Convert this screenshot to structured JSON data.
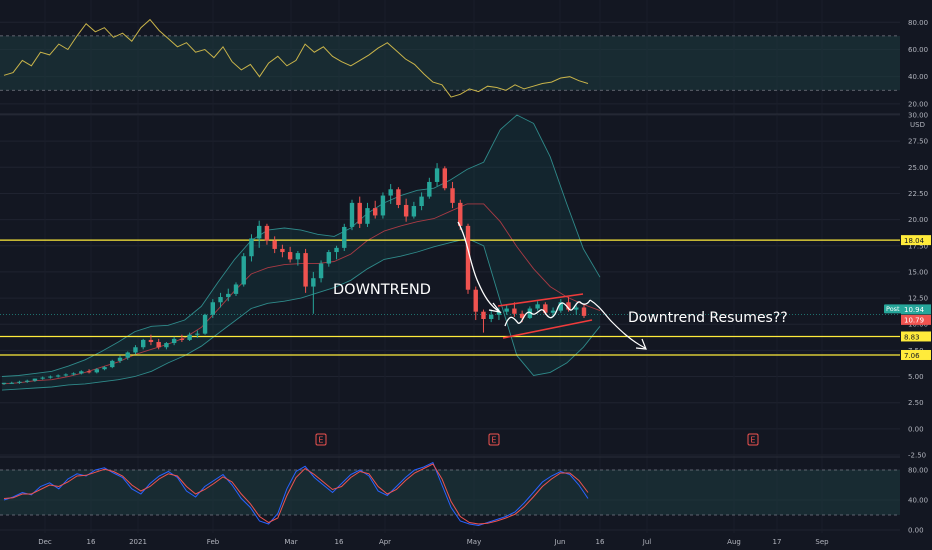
{
  "chart_data": [
    {
      "type": "line",
      "name": "RSI",
      "ylim": [
        14,
        92
      ],
      "y_ticks": [
        "80.00",
        "60.00",
        "40.00",
        "20.00"
      ],
      "band": [
        30,
        70
      ],
      "series": [
        {
          "color": "#c9b44a",
          "x": [
            0,
            2,
            4,
            6,
            8,
            10,
            12,
            14,
            16,
            18,
            20,
            22,
            24,
            26,
            28,
            30,
            32,
            34,
            36,
            38,
            40,
            42,
            44,
            46,
            48,
            50,
            52,
            54,
            56,
            58,
            60,
            62,
            64,
            66,
            68,
            70,
            72,
            74,
            76,
            78,
            80,
            82,
            84,
            86,
            88,
            90,
            92,
            94,
            96,
            98,
            100,
            102,
            104,
            106,
            108,
            110,
            112,
            114,
            116,
            118,
            120,
            122,
            124,
            126,
            128
          ],
          "values": [
            41,
            43,
            52,
            48,
            58,
            56,
            64,
            60,
            70,
            79,
            73,
            76,
            69,
            72,
            66,
            76,
            82,
            74,
            68,
            62,
            65,
            58,
            60,
            54,
            62,
            51,
            45,
            49,
            40,
            50,
            55,
            48,
            52,
            64,
            58,
            62,
            55,
            51,
            48,
            52,
            56,
            61,
            65,
            59,
            53,
            49,
            42,
            36,
            34,
            25,
            27,
            31,
            29,
            33,
            32,
            30,
            34,
            31,
            33,
            35,
            36,
            39,
            40,
            37,
            35
          ]
        }
      ]
    },
    {
      "type": "candlestick",
      "name": "Price",
      "ylim": [
        -2.5,
        30.0
      ],
      "y_unit": "USD",
      "y_ticks": [
        "30.00",
        "27.50",
        "25.00",
        "22.50",
        "20.00",
        "17.50",
        "15.00",
        "12.50",
        "10.00",
        "7.50",
        "5.00",
        "2.50",
        "0.00",
        "-2.50"
      ],
      "x_ticks": [
        "Dec",
        "16",
        "2021",
        "Feb",
        "Mar",
        "16",
        "Apr",
        "May",
        "Jun",
        "16",
        "Jul",
        "Aug",
        "17",
        "Sep"
      ],
      "candles": [
        [
          4.3,
          4.4,
          4.2,
          4.4
        ],
        [
          4.4,
          4.5,
          4.3,
          4.4
        ],
        [
          4.4,
          4.6,
          4.3,
          4.5
        ],
        [
          4.5,
          4.7,
          4.4,
          4.6
        ],
        [
          4.6,
          4.8,
          4.5,
          4.8
        ],
        [
          4.8,
          5.0,
          4.7,
          4.9
        ],
        [
          4.9,
          5.1,
          4.8,
          5.0
        ],
        [
          5.0,
          5.2,
          4.9,
          5.1
        ],
        [
          5.1,
          5.3,
          5.0,
          5.2
        ],
        [
          5.2,
          5.4,
          5.1,
          5.3
        ],
        [
          5.3,
          5.6,
          5.2,
          5.5
        ],
        [
          5.5,
          5.7,
          5.3,
          5.4
        ],
        [
          5.4,
          5.8,
          5.3,
          5.7
        ],
        [
          5.7,
          6.0,
          5.6,
          5.9
        ],
        [
          5.9,
          6.6,
          5.8,
          6.5
        ],
        [
          6.5,
          7.0,
          6.3,
          6.8
        ],
        [
          6.8,
          7.4,
          6.6,
          7.3
        ],
        [
          7.3,
          8.0,
          7.1,
          7.8
        ],
        [
          7.8,
          8.6,
          7.6,
          8.5
        ],
        [
          8.5,
          9.0,
          8.0,
          8.3
        ],
        [
          8.3,
          8.6,
          7.6,
          7.8
        ],
        [
          7.8,
          8.3,
          7.6,
          8.2
        ],
        [
          8.2,
          8.8,
          8.0,
          8.6
        ],
        [
          8.6,
          9.0,
          8.3,
          8.5
        ],
        [
          8.5,
          9.2,
          8.4,
          9.0
        ],
        [
          9.0,
          9.4,
          8.7,
          9.1
        ],
        [
          9.1,
          11.0,
          9.0,
          10.9
        ],
        [
          10.9,
          12.4,
          10.6,
          12.1
        ],
        [
          12.1,
          13.0,
          11.6,
          12.6
        ],
        [
          12.6,
          13.4,
          12.2,
          12.9
        ],
        [
          12.9,
          14.0,
          12.7,
          13.8
        ],
        [
          13.8,
          16.8,
          13.6,
          16.5
        ],
        [
          16.5,
          18.6,
          16.0,
          18.2
        ],
        [
          18.2,
          19.9,
          17.3,
          19.4
        ],
        [
          19.4,
          19.6,
          17.6,
          18.0
        ],
        [
          18.0,
          18.4,
          16.8,
          17.2
        ],
        [
          17.2,
          17.6,
          16.4,
          16.9
        ],
        [
          16.9,
          17.4,
          15.9,
          16.2
        ],
        [
          16.2,
          17.0,
          15.6,
          16.8
        ],
        [
          16.8,
          17.2,
          13.0,
          13.6
        ],
        [
          13.6,
          15.0,
          11.0,
          14.4
        ],
        [
          14.4,
          16.1,
          14.0,
          15.8
        ],
        [
          15.8,
          17.1,
          15.5,
          16.9
        ],
        [
          16.9,
          17.5,
          16.2,
          17.3
        ],
        [
          17.3,
          19.6,
          17.0,
          19.3
        ],
        [
          19.3,
          21.9,
          19.0,
          21.6
        ],
        [
          21.6,
          22.2,
          19.2,
          19.6
        ],
        [
          19.6,
          21.6,
          19.3,
          21.1
        ],
        [
          21.1,
          21.8,
          20.1,
          20.4
        ],
        [
          20.4,
          22.6,
          20.1,
          22.3
        ],
        [
          22.3,
          23.4,
          21.5,
          22.9
        ],
        [
          22.9,
          23.1,
          21.1,
          21.4
        ],
        [
          21.4,
          22.0,
          19.8,
          20.3
        ],
        [
          20.3,
          21.7,
          20.1,
          21.3
        ],
        [
          21.3,
          22.6,
          20.9,
          22.2
        ],
        [
          22.2,
          24.0,
          22.0,
          23.6
        ],
        [
          23.6,
          25.4,
          23.2,
          24.9
        ],
        [
          24.9,
          25.1,
          22.8,
          23.0
        ],
        [
          23.0,
          23.6,
          21.1,
          21.6
        ],
        [
          21.6,
          21.9,
          19.0,
          19.4
        ],
        [
          19.4,
          19.6,
          12.9,
          13.3
        ],
        [
          13.3,
          13.6,
          10.4,
          11.2
        ],
        [
          11.2,
          11.4,
          9.2,
          10.5
        ],
        [
          10.5,
          11.4,
          10.2,
          10.9
        ],
        [
          10.9,
          11.6,
          10.4,
          11.2
        ],
        [
          11.2,
          11.8,
          10.9,
          11.5
        ],
        [
          11.5,
          12.1,
          10.7,
          11.0
        ],
        [
          11.0,
          11.3,
          10.2,
          10.6
        ],
        [
          10.6,
          11.7,
          10.5,
          11.5
        ],
        [
          11.5,
          12.2,
          11.3,
          11.9
        ],
        [
          11.9,
          12.1,
          10.9,
          11.1
        ],
        [
          11.1,
          11.6,
          10.8,
          11.3
        ],
        [
          11.3,
          12.4,
          11.1,
          12.1
        ],
        [
          12.1,
          12.6,
          11.2,
          11.4
        ],
        [
          11.4,
          11.8,
          10.9,
          11.6
        ],
        [
          11.6,
          11.9,
          10.6,
          10.8
        ]
      ],
      "bb_upper": [
        5.0,
        5.1,
        5.3,
        5.5,
        6.0,
        6.6,
        7.4,
        8.3,
        9.3,
        9.8,
        9.9,
        10.4,
        11.7,
        14.0,
        16.2,
        18.0,
        19.0,
        19.2,
        19.0,
        18.6,
        18.4,
        19.2,
        20.6,
        21.6,
        22.3,
        22.8,
        23.0,
        23.8,
        24.8,
        25.5,
        28.6,
        30.0,
        29.2,
        26.0,
        21.5,
        17.2,
        14.5
      ],
      "bb_lower": [
        3.7,
        3.8,
        3.9,
        4.0,
        4.2,
        4.3,
        4.5,
        4.7,
        5.0,
        5.5,
        6.3,
        7.0,
        7.9,
        9.1,
        10.3,
        11.5,
        12.0,
        12.2,
        12.5,
        13.0,
        13.5,
        14.2,
        15.3,
        16.2,
        16.5,
        16.9,
        17.4,
        17.8,
        18.2,
        17.5,
        12.2,
        7.0,
        5.1,
        5.4,
        6.3,
        7.8,
        9.8
      ],
      "bb_basis": [
        4.3,
        4.4,
        4.6,
        4.7,
        5.0,
        5.4,
        5.9,
        6.4,
        7.1,
        7.6,
        8.1,
        8.7,
        9.7,
        11.4,
        13.2,
        14.8,
        15.4,
        15.7,
        15.8,
        15.8,
        16.0,
        16.7,
        18.0,
        18.9,
        19.4,
        19.8,
        20.1,
        20.8,
        21.5,
        21.5,
        19.8,
        17.4,
        15.3,
        13.6,
        12.6,
        11.9,
        11.3
      ],
      "levels": [
        {
          "value": 18.04,
          "label": "18.04",
          "color": "#ffeb3b"
        },
        {
          "value": 8.83,
          "label": "8.83",
          "color": "#ffeb3b"
        },
        {
          "value": 7.06,
          "label": "7.06",
          "color": "#ffeb3b"
        }
      ],
      "price_labels": [
        {
          "label": "Post",
          "value": 10.94,
          "color": "#26a69a"
        },
        {
          "label": "10.94",
          "value": 10.94,
          "color": "#26a69a"
        },
        {
          "label": "10.79",
          "value": 10.79,
          "color": "#ef5350"
        }
      ],
      "annotations": [
        "DOWNTREND",
        "Downtrend Resumes??"
      ],
      "earnings_markers": [
        "E",
        "E",
        "E"
      ]
    },
    {
      "type": "line",
      "name": "Stochastic",
      "ylim": [
        -4,
        96
      ],
      "y_ticks": [
        "80.00",
        "40.00",
        "0.00"
      ],
      "band": [
        20,
        80
      ],
      "series": [
        {
          "color": "#2962ff",
          "x": [
            0,
            2,
            4,
            6,
            8,
            10,
            12,
            14,
            16,
            18,
            20,
            22,
            24,
            26,
            28,
            30,
            32,
            34,
            36,
            38,
            40,
            42,
            44,
            46,
            48,
            50,
            52,
            54,
            56,
            58,
            60,
            62,
            64,
            66,
            68,
            70,
            72,
            74,
            76,
            78,
            80,
            82,
            84,
            86,
            88,
            90,
            92,
            94,
            96,
            98,
            100,
            102,
            104,
            106,
            108,
            110,
            112,
            114,
            116,
            118,
            120,
            122,
            124,
            126,
            128
          ],
          "values": [
            40,
            44,
            50,
            47,
            58,
            63,
            55,
            68,
            75,
            72,
            80,
            83,
            76,
            70,
            55,
            48,
            62,
            72,
            78,
            70,
            52,
            44,
            58,
            66,
            74,
            60,
            42,
            30,
            12,
            8,
            22,
            55,
            78,
            85,
            70,
            60,
            50,
            62,
            74,
            80,
            72,
            52,
            46,
            58,
            70,
            80,
            84,
            90,
            60,
            30,
            12,
            8,
            6,
            10,
            14,
            18,
            24,
            36,
            50,
            64,
            72,
            78,
            74,
            60,
            42
          ]
        },
        {
          "color": "#ef5350",
          "x": [
            0,
            2,
            4,
            6,
            8,
            10,
            12,
            14,
            16,
            18,
            20,
            22,
            24,
            26,
            28,
            30,
            32,
            34,
            36,
            38,
            40,
            42,
            44,
            46,
            48,
            50,
            52,
            54,
            56,
            58,
            60,
            62,
            64,
            66,
            68,
            70,
            72,
            74,
            76,
            78,
            80,
            82,
            84,
            86,
            88,
            90,
            92,
            94,
            96,
            98,
            100,
            102,
            104,
            106,
            108,
            110,
            112,
            114,
            116,
            118,
            120,
            122,
            124,
            126,
            128
          ],
          "values": [
            42,
            43,
            48,
            48,
            54,
            60,
            58,
            64,
            72,
            73,
            77,
            81,
            78,
            72,
            60,
            52,
            58,
            68,
            75,
            72,
            58,
            48,
            54,
            62,
            71,
            64,
            48,
            35,
            18,
            10,
            16,
            46,
            70,
            82,
            74,
            64,
            54,
            58,
            70,
            78,
            75,
            58,
            48,
            54,
            66,
            76,
            82,
            88,
            68,
            38,
            18,
            10,
            8,
            9,
            12,
            16,
            21,
            31,
            44,
            58,
            68,
            76,
            76,
            66,
            50
          ]
        }
      ]
    }
  ]
}
